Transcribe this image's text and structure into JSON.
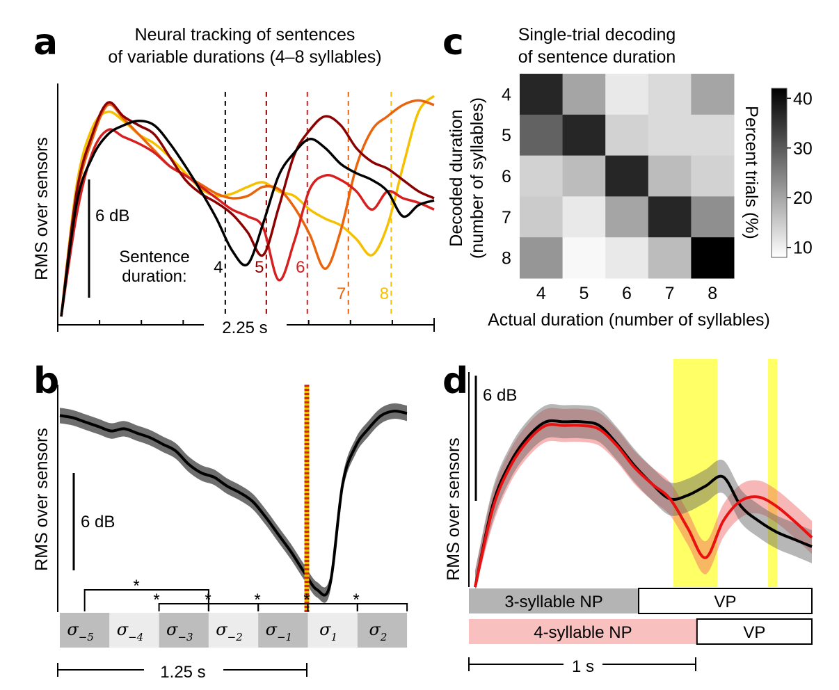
{
  "figure": {
    "panel_labels": [
      "a",
      "b",
      "c",
      "d"
    ]
  },
  "chart_data": [
    {
      "panel": "a",
      "type": "line",
      "title_line1": "Neural tracking of sentences",
      "title_line2": "of variable durations (4–8 syllables)",
      "ylabel": "RMS over sensors",
      "scale_bar": "6 dB",
      "time_bar": "2.25 s",
      "duration_label_line1": "Sentence",
      "duration_label_line2": "duration:",
      "series": [
        {
          "name": "4",
          "color": "#000000",
          "offset_frac": 0.44,
          "y": [
            0.0,
            0.5,
            0.7,
            0.8,
            0.84,
            0.86,
            0.84,
            0.76,
            0.66,
            0.55,
            0.43,
            0.29,
            0.23,
            0.41,
            0.62,
            0.72,
            0.78,
            0.74,
            0.67,
            0.63,
            0.6,
            0.55,
            0.44,
            0.49,
            0.51
          ]
        },
        {
          "name": "5",
          "color": "#8b0000",
          "offset_frac": 0.55,
          "y": [
            0.0,
            0.55,
            0.8,
            0.94,
            0.88,
            0.84,
            0.8,
            0.7,
            0.6,
            0.54,
            0.5,
            0.45,
            0.37,
            0.27,
            0.48,
            0.71,
            0.82,
            0.88,
            0.84,
            0.74,
            0.68,
            0.65,
            0.6,
            0.55,
            0.52
          ]
        },
        {
          "name": "6",
          "color": "#d62020",
          "offset_frac": 0.66,
          "y": [
            0.0,
            0.45,
            0.72,
            0.82,
            0.79,
            0.76,
            0.72,
            0.66,
            0.62,
            0.57,
            0.52,
            0.47,
            0.44,
            0.39,
            0.16,
            0.33,
            0.56,
            0.62,
            0.6,
            0.55,
            0.47,
            0.55,
            0.52,
            0.5,
            0.47
          ]
        },
        {
          "name": "7",
          "color": "#e8650e",
          "offset_frac": 0.77,
          "y": [
            0.0,
            0.53,
            0.78,
            0.93,
            0.87,
            0.8,
            0.73,
            0.66,
            0.62,
            0.58,
            0.54,
            0.52,
            0.53,
            0.57,
            0.56,
            0.48,
            0.36,
            0.21,
            0.38,
            0.66,
            0.82,
            0.88,
            0.93,
            0.95,
            0.93
          ]
        },
        {
          "name": "8",
          "color": "#f5c000",
          "offset_frac": 0.885,
          "y": [
            0.0,
            0.58,
            0.83,
            0.9,
            0.86,
            0.8,
            0.76,
            0.7,
            0.63,
            0.56,
            0.53,
            0.54,
            0.57,
            0.59,
            0.55,
            0.53,
            0.47,
            0.43,
            0.4,
            0.34,
            0.27,
            0.4,
            0.66,
            0.9,
            0.97
          ]
        }
      ]
    },
    {
      "panel": "b",
      "type": "line",
      "ylabel": "RMS over sensors",
      "scale_bar": "6 dB",
      "time_bar": "1.25 s",
      "significance_marker": "*",
      "syllables": [
        {
          "base": "σ",
          "sub": "−5"
        },
        {
          "base": "σ",
          "sub": "−4"
        },
        {
          "base": "σ",
          "sub": "−3"
        },
        {
          "base": "σ",
          "sub": "−2"
        },
        {
          "base": "σ",
          "sub": "−1"
        },
        {
          "base": "σ",
          "sub": "1"
        },
        {
          "base": "σ",
          "sub": "2"
        }
      ],
      "mean": [
        0.86,
        0.85,
        0.83,
        0.81,
        0.79,
        0.8,
        0.78,
        0.76,
        0.73,
        0.7,
        0.64,
        0.6,
        0.58,
        0.54,
        0.51,
        0.47,
        0.4,
        0.32,
        0.24,
        0.15,
        0.07,
        0.09,
        0.55,
        0.72,
        0.8,
        0.86,
        0.88,
        0.87
      ],
      "band_halfwidth": 0.035
    },
    {
      "panel": "c",
      "type": "heatmap",
      "title_line1": "Single-trial decoding",
      "title_line2": "of sentence duration",
      "xlabel": "Actual duration (number of syllables)",
      "ylabel_line1": "Decoded duration",
      "ylabel_line2": "(number of syllables)",
      "x_ticks": [
        "4",
        "5",
        "6",
        "7",
        "8"
      ],
      "y_ticks": [
        "4",
        "5",
        "6",
        "7",
        "8"
      ],
      "colorbar_label": "Percent trials (%)",
      "colorbar_ticks": [
        "40",
        "30",
        "20",
        "10"
      ],
      "colorbar_range": [
        8,
        42
      ],
      "values": [
        [
          37,
          20,
          11,
          13,
          20
        ],
        [
          29,
          37,
          14,
          13,
          13
        ],
        [
          14,
          17,
          37,
          17,
          14
        ],
        [
          15,
          11,
          20,
          37,
          23
        ],
        [
          22,
          9,
          11,
          17,
          42
        ]
      ]
    },
    {
      "panel": "d",
      "type": "line",
      "ylabel": "RMS over sensors",
      "scale_bar": "6 dB",
      "time_bar": "1 s",
      "phrase_row1": {
        "np": "3-syllable NP",
        "vp": "VP",
        "np_color": "#b4b4b4",
        "split_frac": 0.495
      },
      "phrase_row2": {
        "np": "4-syllable NP",
        "vp": "VP",
        "np_color": "#f9c0c0",
        "split_frac": 0.665
      },
      "highlight_color": "#ffff66",
      "series": [
        {
          "name": "3-syllable NP",
          "color": "#000000",
          "y": [
            0.0,
            0.45,
            0.68,
            0.82,
            0.9,
            0.9,
            0.9,
            0.88,
            0.78,
            0.66,
            0.56,
            0.48,
            0.5,
            0.55,
            0.6,
            0.44,
            0.36,
            0.3,
            0.26,
            0.22
          ]
        },
        {
          "name": "4-syllable NP",
          "color": "#e81010",
          "y": [
            0.0,
            0.43,
            0.66,
            0.8,
            0.88,
            0.88,
            0.88,
            0.86,
            0.77,
            0.65,
            0.56,
            0.48,
            0.32,
            0.16,
            0.36,
            0.47,
            0.49,
            0.44,
            0.36,
            0.27
          ]
        }
      ],
      "band_halfwidth": 0.09
    }
  ]
}
